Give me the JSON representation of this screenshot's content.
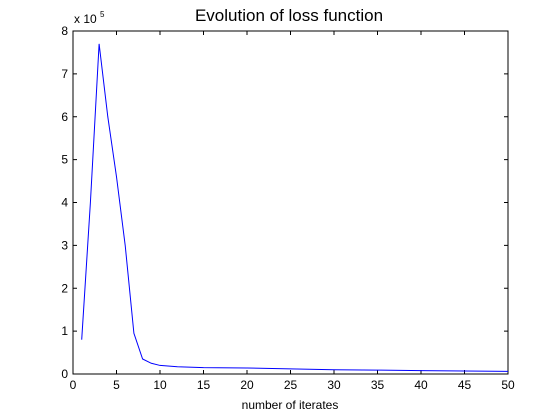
{
  "chart_data": {
    "type": "line",
    "title": "Evolution of loss function",
    "xlabel": "number of iterates",
    "ylabel": "",
    "y_multiplier": {
      "base": "x 10",
      "exponent": "5"
    },
    "xlim": [
      0,
      50
    ],
    "ylim": [
      0,
      800000
    ],
    "x_ticks": [
      0,
      5,
      10,
      15,
      20,
      25,
      30,
      35,
      40,
      45,
      50
    ],
    "x_tick_labels": [
      "0",
      "5",
      "10",
      "15",
      "20",
      "25",
      "30",
      "35",
      "40",
      "45",
      "50"
    ],
    "y_ticks": [
      0,
      100000,
      200000,
      300000,
      400000,
      500000,
      600000,
      700000,
      800000
    ],
    "y_tick_labels": [
      "0",
      "1",
      "2",
      "3",
      "4",
      "5",
      "6",
      "7",
      "8"
    ],
    "grid": false,
    "series": [
      {
        "color": "#0000ff",
        "x": [
          1,
          2,
          3,
          4,
          5,
          6,
          7,
          8,
          9,
          10,
          12,
          15,
          20,
          25,
          30,
          35,
          40,
          45,
          50
        ],
        "y": [
          80000,
          400000,
          770000,
          600000,
          460000,
          300000,
          95000,
          35000,
          25000,
          20000,
          17000,
          15000,
          14000,
          12000,
          10000,
          9000,
          8000,
          7000,
          6000
        ]
      }
    ]
  }
}
